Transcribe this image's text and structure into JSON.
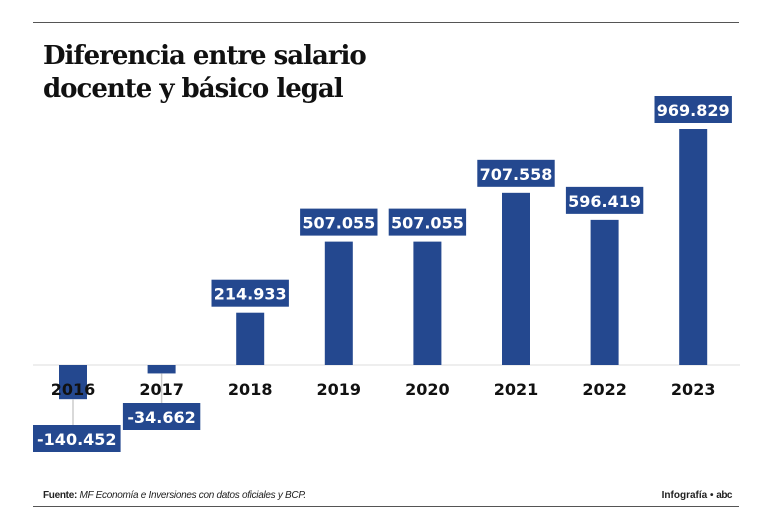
{
  "chart_data": {
    "type": "bar",
    "title": "Diferencia entre salario docente y básico legal",
    "categories": [
      "2016",
      "2017",
      "2018",
      "2019",
      "2020",
      "2021",
      "2022",
      "2023"
    ],
    "values": [
      -140452,
      -34662,
      214933,
      507055,
      507055,
      707558,
      596419,
      969829
    ],
    "value_labels": [
      "-140.452",
      "-34.662",
      "214.933",
      "507.055",
      "507.055",
      "707.558",
      "596.419",
      "969.829"
    ],
    "xlabel": "",
    "ylabel": "",
    "grid": false,
    "colors": {
      "bar": "#24488f",
      "label_bg": "#24488f",
      "label_text": "#ffffff"
    }
  },
  "footer": {
    "source_label": "Fuente:",
    "source_text": "MF Economía e Inversiones con datos oficiales y BCP.",
    "credit": "Infografía •",
    "logo": "abc"
  }
}
